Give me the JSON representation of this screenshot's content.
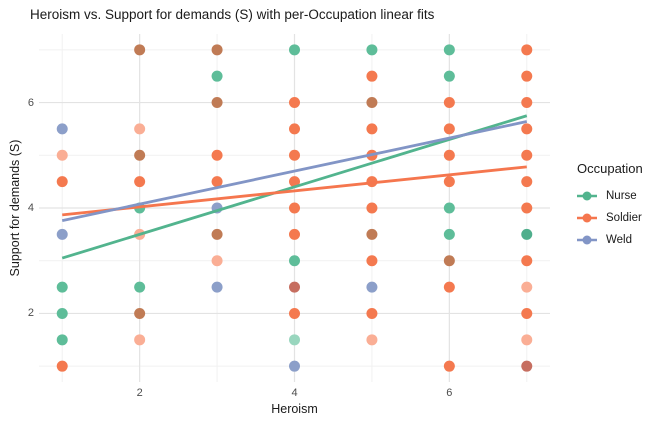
{
  "chart_data": {
    "type": "scatter",
    "title": "Heroism vs. Support for demands (S) with per-Occupation linear fits",
    "xlabel": "Heroism",
    "ylabel": "Support for demands (S)",
    "xlim": [
      0.7,
      7.3
    ],
    "ylim": [
      0.7,
      7.3
    ],
    "x_major_ticks": [
      2,
      4,
      6
    ],
    "y_major_ticks": [
      2,
      4,
      6
    ],
    "x_minor_ticks": [
      1,
      3,
      5,
      7
    ],
    "y_minor_ticks": [
      1,
      3,
      5,
      7
    ],
    "grid": {
      "major_color": "#E3E3E3",
      "minor_color": "#F1F1F1",
      "background": "#FFFFFF"
    },
    "point_alpha_palette": {
      "green": "#5EBD99",
      "green_light": "#99D6BE",
      "green_dark": "#4FAE8C",
      "orange": "#F4794F",
      "orange_light": "#FAAE95",
      "orange_dark": "#C07B55",
      "red_dark": "#C66E60",
      "blue": "#8C9FC9"
    },
    "legend": {
      "title": "Occupation",
      "entries": [
        {
          "label": "Nurse",
          "color": "#52B48E"
        },
        {
          "label": "Soldier",
          "color": "#F5764E"
        },
        {
          "label": "Weld",
          "color": "#8295C6"
        }
      ]
    },
    "points": [
      {
        "x": 1,
        "y": 5.5,
        "c": "blue"
      },
      {
        "x": 1,
        "y": 5,
        "c": "orange_light"
      },
      {
        "x": 1,
        "y": 4.5,
        "c": "orange"
      },
      {
        "x": 1,
        "y": 3.5,
        "c": "blue"
      },
      {
        "x": 1,
        "y": 2.5,
        "c": "green"
      },
      {
        "x": 1,
        "y": 2,
        "c": "green"
      },
      {
        "x": 1,
        "y": 1.5,
        "c": "green"
      },
      {
        "x": 1,
        "y": 1,
        "c": "orange"
      },
      {
        "x": 2,
        "y": 7,
        "c": "orange_dark"
      },
      {
        "x": 2,
        "y": 5.5,
        "c": "orange_light"
      },
      {
        "x": 2,
        "y": 5,
        "c": "orange_dark"
      },
      {
        "x": 2,
        "y": 4.5,
        "c": "orange"
      },
      {
        "x": 2,
        "y": 4,
        "c": "green"
      },
      {
        "x": 2,
        "y": 3.5,
        "c": "orange_light"
      },
      {
        "x": 2,
        "y": 2.5,
        "c": "green"
      },
      {
        "x": 2,
        "y": 2,
        "c": "orange_dark"
      },
      {
        "x": 2,
        "y": 1.5,
        "c": "orange_light"
      },
      {
        "x": 3,
        "y": 7,
        "c": "orange_dark"
      },
      {
        "x": 3,
        "y": 6.5,
        "c": "green"
      },
      {
        "x": 3,
        "y": 6,
        "c": "orange_dark"
      },
      {
        "x": 3,
        "y": 5,
        "c": "orange"
      },
      {
        "x": 3,
        "y": 4.5,
        "c": "orange"
      },
      {
        "x": 3,
        "y": 4,
        "c": "blue"
      },
      {
        "x": 3,
        "y": 3.5,
        "c": "orange_dark"
      },
      {
        "x": 3,
        "y": 3,
        "c": "orange_light"
      },
      {
        "x": 3,
        "y": 2.5,
        "c": "blue"
      },
      {
        "x": 4,
        "y": 7,
        "c": "green"
      },
      {
        "x": 4,
        "y": 6,
        "c": "orange"
      },
      {
        "x": 4,
        "y": 5.5,
        "c": "orange"
      },
      {
        "x": 4,
        "y": 5,
        "c": "orange"
      },
      {
        "x": 4,
        "y": 4.5,
        "c": "orange"
      },
      {
        "x": 4,
        "y": 4,
        "c": "orange"
      },
      {
        "x": 4,
        "y": 3.5,
        "c": "orange"
      },
      {
        "x": 4,
        "y": 3,
        "c": "green"
      },
      {
        "x": 4,
        "y": 2.5,
        "c": "red_dark"
      },
      {
        "x": 4,
        "y": 2,
        "c": "orange"
      },
      {
        "x": 4,
        "y": 1.5,
        "c": "green_light"
      },
      {
        "x": 4,
        "y": 1,
        "c": "blue"
      },
      {
        "x": 5,
        "y": 7,
        "c": "green"
      },
      {
        "x": 5,
        "y": 6.5,
        "c": "orange"
      },
      {
        "x": 5,
        "y": 6,
        "c": "orange_dark"
      },
      {
        "x": 5,
        "y": 5.5,
        "c": "orange"
      },
      {
        "x": 5,
        "y": 5,
        "c": "orange"
      },
      {
        "x": 5,
        "y": 4.5,
        "c": "orange"
      },
      {
        "x": 5,
        "y": 4,
        "c": "orange"
      },
      {
        "x": 5,
        "y": 3.5,
        "c": "orange_dark"
      },
      {
        "x": 5,
        "y": 3,
        "c": "orange"
      },
      {
        "x": 5,
        "y": 2.5,
        "c": "blue"
      },
      {
        "x": 5,
        "y": 2,
        "c": "orange"
      },
      {
        "x": 5,
        "y": 1.5,
        "c": "orange_light"
      },
      {
        "x": 6,
        "y": 7,
        "c": "green"
      },
      {
        "x": 6,
        "y": 6.5,
        "c": "green"
      },
      {
        "x": 6,
        "y": 6,
        "c": "orange"
      },
      {
        "x": 6,
        "y": 5.5,
        "c": "orange"
      },
      {
        "x": 6,
        "y": 5,
        "c": "orange"
      },
      {
        "x": 6,
        "y": 4.5,
        "c": "orange"
      },
      {
        "x": 6,
        "y": 4,
        "c": "green"
      },
      {
        "x": 6,
        "y": 3.5,
        "c": "green"
      },
      {
        "x": 6,
        "y": 3,
        "c": "orange_dark"
      },
      {
        "x": 6,
        "y": 2.5,
        "c": "orange"
      },
      {
        "x": 6,
        "y": 1,
        "c": "orange"
      },
      {
        "x": 7,
        "y": 7,
        "c": "orange"
      },
      {
        "x": 7,
        "y": 6.5,
        "c": "orange"
      },
      {
        "x": 7,
        "y": 6,
        "c": "orange"
      },
      {
        "x": 7,
        "y": 5.5,
        "c": "orange"
      },
      {
        "x": 7,
        "y": 5,
        "c": "orange"
      },
      {
        "x": 7,
        "y": 4.5,
        "c": "orange"
      },
      {
        "x": 7,
        "y": 4,
        "c": "orange"
      },
      {
        "x": 7,
        "y": 3.5,
        "c": "green_dark"
      },
      {
        "x": 7,
        "y": 3,
        "c": "orange"
      },
      {
        "x": 7,
        "y": 2.5,
        "c": "orange_light"
      },
      {
        "x": 7,
        "y": 2,
        "c": "orange"
      },
      {
        "x": 7,
        "y": 1.5,
        "c": "orange_light"
      },
      {
        "x": 7,
        "y": 1,
        "c": "red_dark"
      }
    ],
    "fits": [
      {
        "name": "Nurse",
        "x_start": 1,
        "y_start": 3.05,
        "x_end": 7,
        "y_end": 5.75,
        "color": "#52B48E"
      },
      {
        "name": "Soldier",
        "x_start": 1,
        "y_start": 3.87,
        "x_end": 7,
        "y_end": 4.78,
        "color": "#F5764E"
      },
      {
        "name": "Weld",
        "x_start": 1,
        "y_start": 3.76,
        "x_end": 7,
        "y_end": 5.64,
        "color": "#8295C6"
      }
    ]
  },
  "text_colors": {
    "title": "#1A1A1A",
    "axis_title": "#1A1A1A",
    "tick_label": "#4D4D4D",
    "legend_text": "#1A1A1A"
  }
}
